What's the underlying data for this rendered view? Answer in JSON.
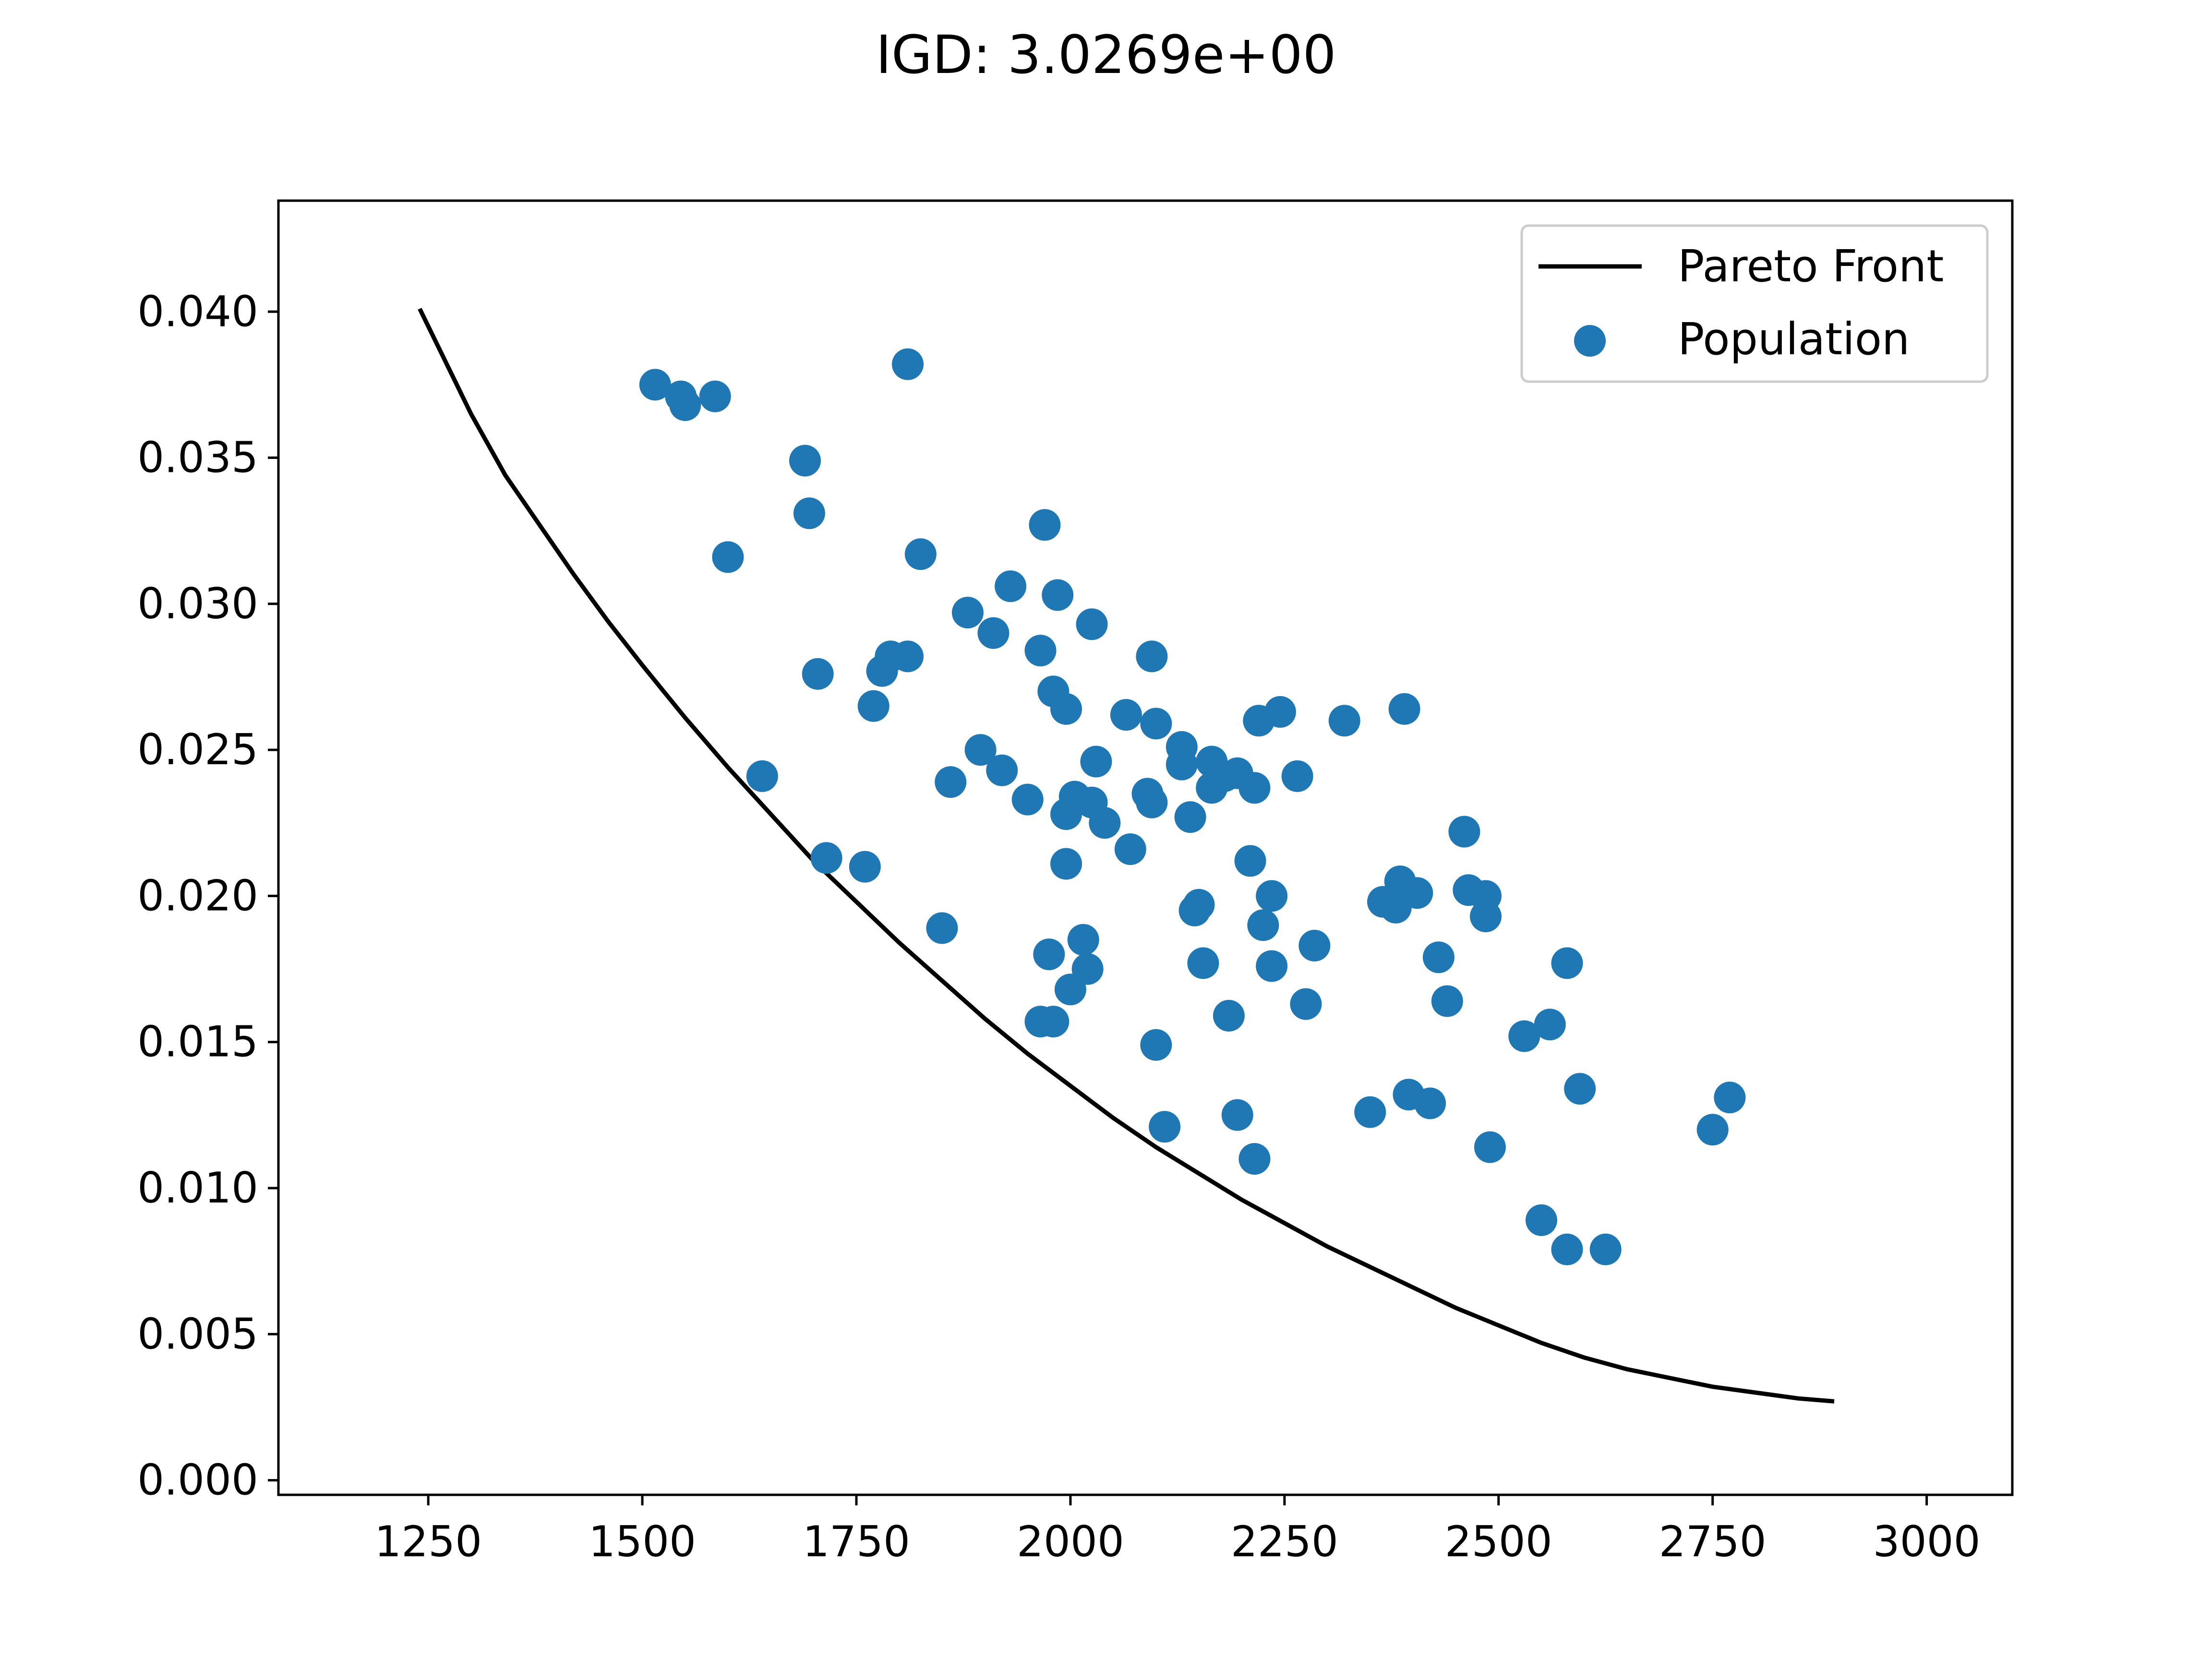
{
  "chart_data": {
    "type": "scatter",
    "title": "IGD: 3.0269e+00",
    "xlabel": "",
    "ylabel": "",
    "xlim": [
      1075,
      3100
    ],
    "ylim": [
      -0.0005,
      0.0438
    ],
    "grid": false,
    "legend_placement": "top-right",
    "x_ticks": [
      1250,
      1500,
      1750,
      2000,
      2250,
      2500,
      2750,
      3000
    ],
    "y_ticks": [
      0.0,
      0.005,
      0.01,
      0.015,
      0.02,
      0.025,
      0.03,
      0.035,
      0.04
    ],
    "x_tick_labels": [
      "1250",
      "1500",
      "1750",
      "2000",
      "2250",
      "2500",
      "2750",
      "3000"
    ],
    "y_tick_labels": [
      "0.000",
      "0.005",
      "0.010",
      "0.015",
      "0.020",
      "0.025",
      "0.030",
      "0.035",
      "0.040"
    ],
    "series": [
      {
        "name": "Pareto Front",
        "kind": "line",
        "color": "#000000",
        "x": [
          1240,
          1270,
          1300,
          1340,
          1380,
          1420,
          1460,
          1500,
          1550,
          1600,
          1650,
          1700,
          1750,
          1800,
          1850,
          1900,
          1950,
          2000,
          2050,
          2100,
          2150,
          2200,
          2250,
          2300,
          2350,
          2400,
          2450,
          2500,
          2550,
          2600,
          2650,
          2700,
          2750,
          2800,
          2850,
          2892
        ],
        "y": [
          0.0401,
          0.0383,
          0.0365,
          0.0344,
          0.0327,
          0.031,
          0.0294,
          0.0279,
          0.0261,
          0.0244,
          0.0228,
          0.0212,
          0.0198,
          0.0184,
          0.0171,
          0.0158,
          0.0146,
          0.0135,
          0.0124,
          0.0114,
          0.0105,
          0.0096,
          0.0088,
          0.008,
          0.0073,
          0.0066,
          0.0059,
          0.0053,
          0.0047,
          0.0042,
          0.0038,
          0.0035,
          0.0032,
          0.003,
          0.0028,
          0.0027
        ]
      },
      {
        "name": "Population",
        "kind": "scatter",
        "color": "#1f77b4",
        "points": [
          [
            1515,
            0.0375
          ],
          [
            1545,
            0.0371
          ],
          [
            1550,
            0.0368
          ],
          [
            1585,
            0.0371
          ],
          [
            1810,
            0.0382
          ],
          [
            1690,
            0.0349
          ],
          [
            1695,
            0.0331
          ],
          [
            1600,
            0.0316
          ],
          [
            1825,
            0.0317
          ],
          [
            1970,
            0.0327
          ],
          [
            1930,
            0.0306
          ],
          [
            1985,
            0.0303
          ],
          [
            1880,
            0.0297
          ],
          [
            1910,
            0.029
          ],
          [
            2025,
            0.0293
          ],
          [
            1965,
            0.0284
          ],
          [
            1790,
            0.0282
          ],
          [
            1810,
            0.0282
          ],
          [
            1780,
            0.0277
          ],
          [
            1705,
            0.0276
          ],
          [
            2095,
            0.0282
          ],
          [
            1980,
            0.027
          ],
          [
            1770,
            0.0265
          ],
          [
            1995,
            0.0264
          ],
          [
            2065,
            0.0262
          ],
          [
            2100,
            0.0259
          ],
          [
            2390,
            0.0264
          ],
          [
            2220,
            0.026
          ],
          [
            2245,
            0.0263
          ],
          [
            2320,
            0.026
          ],
          [
            1640,
            0.0241
          ],
          [
            1895,
            0.025
          ],
          [
            1920,
            0.0243
          ],
          [
            1860,
            0.0239
          ],
          [
            1950,
            0.0233
          ],
          [
            2030,
            0.0246
          ],
          [
            2130,
            0.0251
          ],
          [
            2130,
            0.0245
          ],
          [
            2165,
            0.0246
          ],
          [
            2180,
            0.0241
          ],
          [
            2195,
            0.0242
          ],
          [
            2165,
            0.0237
          ],
          [
            2215,
            0.0237
          ],
          [
            2265,
            0.0241
          ],
          [
            2005,
            0.0234
          ],
          [
            2025,
            0.0232
          ],
          [
            1995,
            0.0228
          ],
          [
            2040,
            0.0225
          ],
          [
            2090,
            0.0235
          ],
          [
            2095,
            0.0232
          ],
          [
            2140,
            0.0227
          ],
          [
            1715,
            0.0213
          ],
          [
            1760,
            0.021
          ],
          [
            1995,
            0.0211
          ],
          [
            2070,
            0.0216
          ],
          [
            2210,
            0.0212
          ],
          [
            2460,
            0.0222
          ],
          [
            1850,
            0.0189
          ],
          [
            2150,
            0.0197
          ],
          [
            2145,
            0.0195
          ],
          [
            2235,
            0.02
          ],
          [
            2225,
            0.019
          ],
          [
            2385,
            0.0205
          ],
          [
            2405,
            0.0201
          ],
          [
            2380,
            0.0196
          ],
          [
            2365,
            0.0198
          ],
          [
            2465,
            0.0202
          ],
          [
            2485,
            0.02
          ],
          [
            2485,
            0.0193
          ],
          [
            2015,
            0.0185
          ],
          [
            1975,
            0.018
          ],
          [
            2020,
            0.0175
          ],
          [
            2000,
            0.0168
          ],
          [
            2155,
            0.0177
          ],
          [
            2235,
            0.0176
          ],
          [
            2285,
            0.0183
          ],
          [
            2275,
            0.0163
          ],
          [
            2185,
            0.0159
          ],
          [
            2430,
            0.0179
          ],
          [
            2440,
            0.0164
          ],
          [
            2580,
            0.0177
          ],
          [
            1965,
            0.0157
          ],
          [
            1980,
            0.0157
          ],
          [
            2100,
            0.0149
          ],
          [
            2530,
            0.0152
          ],
          [
            2560,
            0.0156
          ],
          [
            2395,
            0.0132
          ],
          [
            2420,
            0.0129
          ],
          [
            2350,
            0.0126
          ],
          [
            2195,
            0.0125
          ],
          [
            2110,
            0.0121
          ],
          [
            2215,
            0.011
          ],
          [
            2490,
            0.0114
          ],
          [
            2595,
            0.0134
          ],
          [
            2770,
            0.0131
          ],
          [
            2750,
            0.012
          ],
          [
            2550,
            0.0089
          ],
          [
            2580,
            0.0079
          ],
          [
            2625,
            0.0079
          ]
        ]
      }
    ]
  }
}
